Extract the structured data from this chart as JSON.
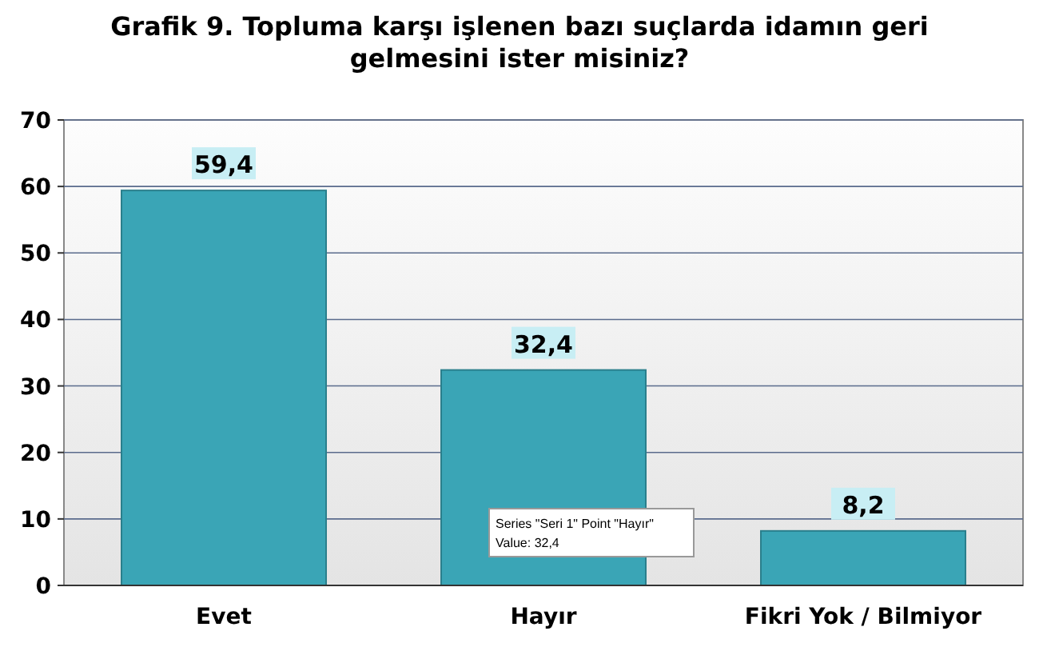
{
  "chart_data": {
    "type": "bar",
    "title": "Grafik 9. Topluma karşı işlenen bazı suçlarda idamın geri gelmesini ister misiniz?",
    "categories": [
      "Evet",
      "Hayır",
      "Fikri Yok / Bilmiyor"
    ],
    "values": [
      59.4,
      32.4,
      8.2
    ],
    "value_labels": [
      "59,4",
      "32,4",
      "8,2"
    ],
    "color": "#3aa5b6",
    "ylim": [
      0,
      70
    ],
    "yticks": [
      0,
      10,
      20,
      30,
      40,
      50,
      60,
      70
    ],
    "grid": "y",
    "annotations": [
      "Series \"Seri 1\" Point \"Hayır\"",
      "Value: 32,4"
    ]
  }
}
